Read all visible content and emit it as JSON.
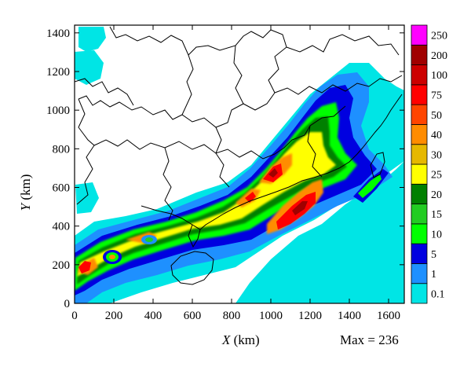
{
  "chart_data": {
    "type": "heatmap",
    "xlabel": {
      "var": "X",
      "unit": " (km)"
    },
    "ylabel": {
      "var": "Y",
      "unit": " (km)"
    },
    "x_ticks": [
      "0",
      "200",
      "400",
      "600",
      "800",
      "1000",
      "1200",
      "1400",
      "1600"
    ],
    "y_ticks": [
      "0",
      "200",
      "400",
      "600",
      "800",
      "1000",
      "1200",
      "1400"
    ],
    "xlim": [
      0,
      1680
    ],
    "ylim": [
      0,
      1440
    ],
    "max_annotation": "Max = 236",
    "colorbar": {
      "levels": [
        "0.1",
        "1",
        "5",
        "10",
        "15",
        "20",
        "25",
        "30",
        "40",
        "50",
        "75",
        "100",
        "200",
        "250"
      ],
      "colors": [
        "#00e5e5",
        "#1e90ff",
        "#0000e0",
        "#00ff00",
        "#22cc22",
        "#008000",
        "#ffff00",
        "#e6b800",
        "#ff8c00",
        "#ff4500",
        "#ff0000",
        "#cc0000",
        "#a00000",
        "#ff00ff"
      ]
    },
    "grid": false
  }
}
